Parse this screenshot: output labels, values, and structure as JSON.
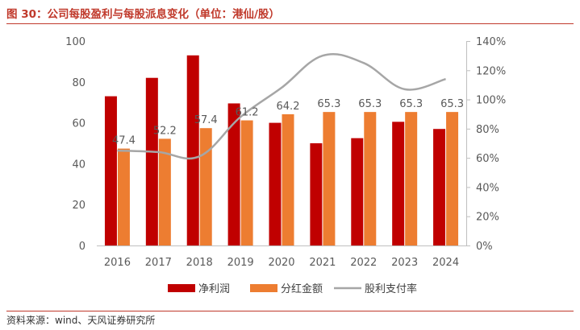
{
  "title": "图 30：公司每股盈利与每股派息变化（单位：港仙/股）",
  "source": "资料来源：wind、天风证券研究所",
  "colors": {
    "title": "#c0392b",
    "net_profit": "#c00000",
    "dividend": "#ed7d31",
    "payout": "#a6a6a6"
  },
  "chart_data": {
    "type": "bar",
    "categories": [
      "2016",
      "2017",
      "2018",
      "2019",
      "2020",
      "2021",
      "2022",
      "2023",
      "2024"
    ],
    "series": [
      {
        "name": "净利润",
        "type": "bar",
        "axis": "left",
        "values": [
          73,
          82,
          93,
          69.5,
          60,
          50,
          52.5,
          60.5,
          57
        ]
      },
      {
        "name": "分红金额",
        "type": "bar",
        "axis": "left",
        "values": [
          47.4,
          52.2,
          57.4,
          61.2,
          64.2,
          65.3,
          65.3,
          65.3,
          65.3
        ],
        "labels": [
          "47.4",
          "52.2",
          "57.4",
          "61.2",
          "64.2",
          "65.3",
          "65.3",
          "65.3",
          "65.3"
        ]
      },
      {
        "name": "股利支付率",
        "type": "line",
        "axis": "right",
        "values": [
          65,
          64,
          61,
          88,
          108,
          130,
          125,
          107,
          114
        ]
      }
    ],
    "y_left": {
      "min": 0,
      "max": 100,
      "ticks": [
        "0",
        "20",
        "40",
        "60",
        "80",
        "100"
      ]
    },
    "y_right": {
      "min": 0,
      "max": 140,
      "ticks": [
        "0%",
        "20%",
        "40%",
        "60%",
        "80%",
        "100%",
        "120%",
        "140%"
      ]
    },
    "legend_position": "bottom",
    "grid": false
  }
}
